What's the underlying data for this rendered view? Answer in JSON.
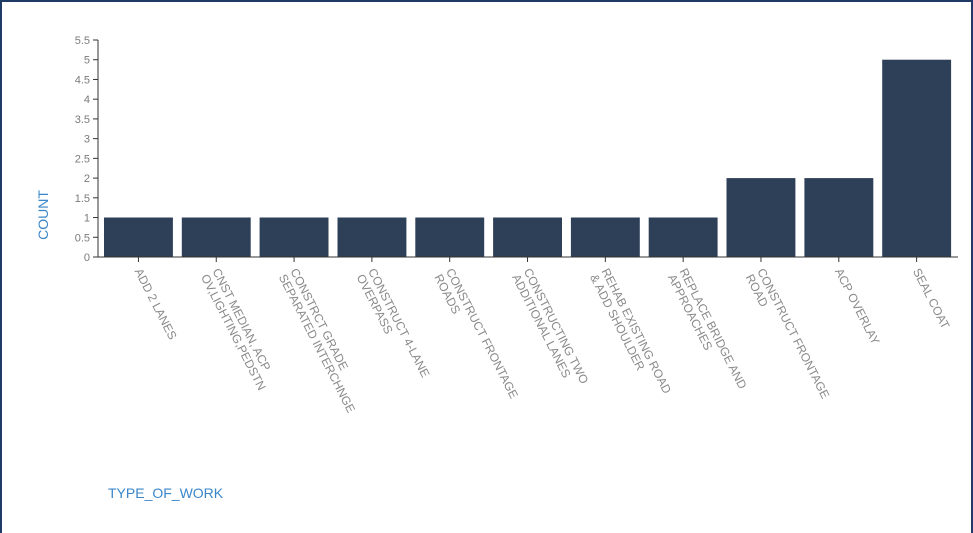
{
  "chart_data": {
    "type": "bar",
    "categories": [
      [
        "ADD 2 LANES"
      ],
      [
        "CNST MEDIAN, ACP",
        "OV,LIGHTING,PEDSTN"
      ],
      [
        "CONSTRCT GRADE",
        "SEPARATED INTERCHNGE"
      ],
      [
        "CONSTRUCT 4-LANE",
        "OVERPASS"
      ],
      [
        "CONSTRUCT FRONTAGE",
        "ROADS"
      ],
      [
        "CONSTRUCTING TWO",
        "ADDITIONAL LANES"
      ],
      [
        "REHAB EXISTING ROAD",
        "& ADD SHOULDER"
      ],
      [
        "REPLACE BRIDGE AND",
        "APPROACHES"
      ],
      [
        "CONSTRUCT FRONTAGE",
        "ROAD"
      ],
      [
        "ACP OVERLAY"
      ],
      [
        "SEAL COAT"
      ]
    ],
    "values": [
      1,
      1,
      1,
      1,
      1,
      1,
      1,
      1,
      2,
      2,
      5
    ],
    "ylim": [
      0,
      5.5
    ],
    "yticks": [
      "0",
      "0.5",
      "1",
      "1.5",
      "2",
      "2.5",
      "3",
      "3.5",
      "4",
      "4.5",
      "5",
      "5.5"
    ],
    "xlabel": "TYPE_OF_WORK",
    "ylabel": "COUNT",
    "bar_color": "#2e4057",
    "axis_title_color": "#3a86c8",
    "grid": false
  }
}
